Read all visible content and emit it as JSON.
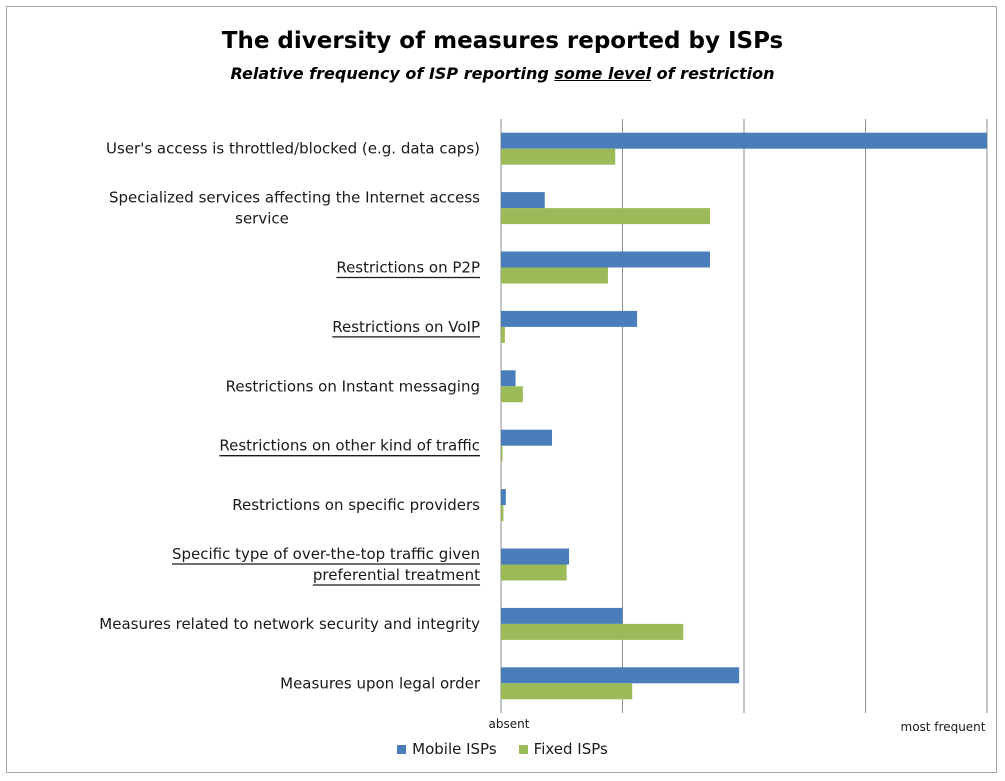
{
  "chart_data": {
    "type": "bar",
    "orientation": "horizontal",
    "title": "The diversity of measures reported by ISPs",
    "subtitle": {
      "before": "Relative frequency of ISP reporting ",
      "underlined": "some level",
      "after": " of restriction"
    },
    "categories": [
      "User's access is throttled/blocked (e.g. data caps)",
      "Specialized services affecting the Internet access service",
      "Restrictions on P2P",
      "Restrictions on VoIP",
      "Restrictions on Instant messaging",
      "Restrictions on other kind of traffic",
      "Restrictions on specific providers",
      "Specific type of over-the-top traffic given preferential treatment",
      "Measures related to network security and integrity",
      "Measures upon legal order"
    ],
    "category_lines": [
      [
        "User's access is throttled/blocked (e.g. data caps)"
      ],
      [
        "Specialized services affecting the Internet access",
        "service"
      ],
      [
        "Restrictions on P2P"
      ],
      [
        "Restrictions on VoIP"
      ],
      [
        "Restrictions on Instant messaging"
      ],
      [
        "Restrictions on other kind of traffic"
      ],
      [
        "Restrictions on specific providers"
      ],
      [
        "Specific type of over-the-top traffic given",
        "preferential treatment"
      ],
      [
        "Measures related to network security and integrity"
      ],
      [
        "Measures upon legal order"
      ]
    ],
    "underlined_categories": [
      2,
      3,
      5,
      7
    ],
    "series": [
      {
        "name": "Mobile ISPs",
        "color": "#4a7ebb",
        "values": [
          1.0,
          0.09,
          0.43,
          0.28,
          0.03,
          0.105,
          0.01,
          0.14,
          0.25,
          0.49
        ]
      },
      {
        "name": "Fixed ISPs",
        "color": "#9bbb59",
        "values": [
          0.235,
          0.43,
          0.22,
          0.008,
          0.045,
          0.003,
          0.005,
          0.135,
          0.375,
          0.27
        ]
      }
    ],
    "xlim": [
      0,
      1
    ],
    "x_tick_labels": {
      "min": "absent",
      "max": "most frequent"
    },
    "gridlines": [
      0,
      0.25,
      0.5,
      0.75,
      1.0
    ],
    "grid": true,
    "legend_position": "bottom"
  }
}
